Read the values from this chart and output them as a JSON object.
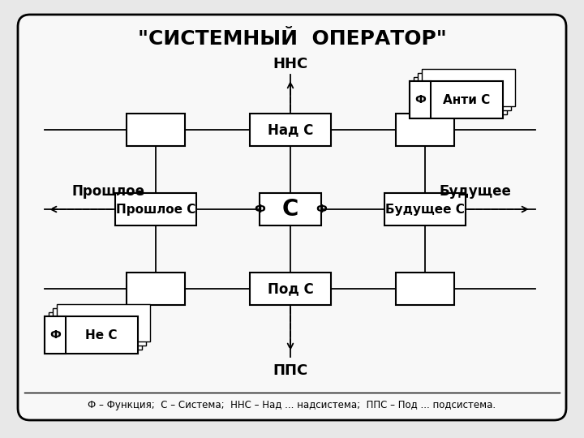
{
  "title": "\"СИСТЕМНЫЙ  ОПЕРАТОР\"",
  "bg_outer": "#e8e8e8",
  "bg_inner": "#f8f8f8",
  "box_color": "#ffffff",
  "legend_text": "Ф – Функция;  С – Система;  ННС – Над ... надсистема;  ППС – Под ... подсистема.",
  "nns": "ННС",
  "pps": "ППС",
  "nad_c": "Над С",
  "pod_c": "Под С",
  "c_label": "С",
  "proshloe_c": "Прошлое С",
  "budushee_c": "Будущее С",
  "proshloe": "Прошлое",
  "budushee": "Будущее",
  "anti_c": "Анти С",
  "ne_c": "Не С",
  "phi": "Ф"
}
